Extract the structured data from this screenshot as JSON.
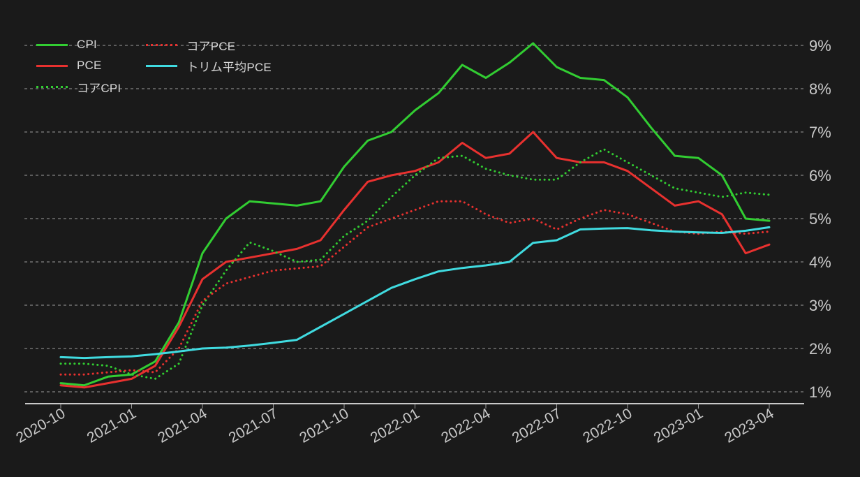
{
  "chart_data": {
    "type": "line",
    "title": "",
    "xlabel": "",
    "ylabel": "",
    "x_labels": [
      "2020-10",
      "2020-11",
      "2020-12",
      "2021-01",
      "2021-02",
      "2021-03",
      "2021-04",
      "2021-05",
      "2021-06",
      "2021-07",
      "2021-08",
      "2021-09",
      "2021-10",
      "2021-11",
      "2021-12",
      "2022-01",
      "2022-02",
      "2022-03",
      "2022-04",
      "2022-05",
      "2022-06",
      "2022-07",
      "2022-08",
      "2022-09",
      "2022-10",
      "2022-11",
      "2022-12",
      "2023-01",
      "2023-02",
      "2023-03",
      "2023-04"
    ],
    "x_tick_labels": [
      "2020-10",
      "2021-01",
      "2021-04",
      "2021-07",
      "2021-10",
      "2022-01",
      "2022-04",
      "2022-07",
      "2022-10",
      "2023-01",
      "2023-04"
    ],
    "y_tick_labels": [
      "1%",
      "2%",
      "3%",
      "4%",
      "5%",
      "6%",
      "7%",
      "8%",
      "9%"
    ],
    "y_tick_values": [
      1,
      2,
      3,
      4,
      5,
      6,
      7,
      8,
      9
    ],
    "ylim": [
      0.55,
      9.35
    ],
    "grid": "horizontal-dashed",
    "legend_position": "top-left",
    "series": [
      {
        "id": "cpi",
        "name": "CPI",
        "color": "#32cd32",
        "style": "solid",
        "values": [
          1.2,
          1.15,
          1.35,
          1.4,
          1.7,
          2.6,
          4.2,
          5.0,
          5.4,
          5.35,
          5.3,
          5.4,
          6.2,
          6.8,
          7.0,
          7.5,
          7.9,
          8.55,
          8.25,
          8.6,
          9.05,
          8.5,
          8.25,
          8.2,
          7.8,
          7.1,
          6.45,
          6.4,
          6.0,
          5.0,
          4.95
        ]
      },
      {
        "id": "pce",
        "name": "PCE",
        "color": "#e8312f",
        "style": "solid",
        "values": [
          1.15,
          1.1,
          1.2,
          1.3,
          1.6,
          2.5,
          3.6,
          4.0,
          4.1,
          4.2,
          4.3,
          4.5,
          5.2,
          5.85,
          6.0,
          6.1,
          6.3,
          6.75,
          6.4,
          6.5,
          7.0,
          6.4,
          6.3,
          6.3,
          6.1,
          5.7,
          5.3,
          5.4,
          5.1,
          4.2,
          4.4
        ]
      },
      {
        "id": "core-cpi",
        "name": "コアCPI",
        "color": "#32cd32",
        "style": "dotted",
        "values": [
          1.65,
          1.65,
          1.6,
          1.4,
          1.3,
          1.65,
          3.0,
          3.8,
          4.45,
          4.25,
          4.0,
          4.05,
          4.6,
          4.95,
          5.5,
          6.0,
          6.4,
          6.45,
          6.15,
          6.0,
          5.9,
          5.9,
          6.3,
          6.6,
          6.3,
          6.0,
          5.7,
          5.6,
          5.5,
          5.6,
          5.55
        ]
      },
      {
        "id": "core-pce",
        "name": "コアPCE",
        "color": "#e8312f",
        "style": "dotted",
        "values": [
          1.4,
          1.4,
          1.45,
          1.5,
          1.45,
          2.0,
          3.1,
          3.5,
          3.65,
          3.8,
          3.85,
          3.9,
          4.35,
          4.8,
          5.0,
          5.2,
          5.4,
          5.4,
          5.1,
          4.9,
          5.0,
          4.75,
          5.0,
          5.2,
          5.1,
          4.9,
          4.7,
          4.65,
          4.7,
          4.65,
          4.7
        ]
      },
      {
        "id": "trimmed-mean-pce",
        "name": "トリム平均PCE",
        "color": "#40dbe0",
        "style": "solid",
        "values": [
          1.8,
          1.78,
          1.8,
          1.82,
          1.87,
          1.93,
          2.0,
          2.02,
          2.07,
          2.13,
          2.2,
          2.5,
          2.8,
          3.1,
          3.4,
          3.6,
          3.78,
          3.86,
          3.92,
          4.0,
          4.44,
          4.5,
          4.75,
          4.77,
          4.78,
          4.73,
          4.7,
          4.68,
          4.67,
          4.72,
          4.8
        ]
      }
    ],
    "colors": {
      "background": "#1a1a1a",
      "gridline": "#c9c9c9",
      "axis_line": "#c9c9c9",
      "tick_label": "#c9c9c9",
      "legend_text": "#d8d8d8"
    }
  },
  "legend": {
    "columns": [
      {
        "items": [
          {
            "series": 0,
            "label": "CPI"
          },
          {
            "series": 1,
            "label": "PCE"
          },
          {
            "series": 2,
            "label": "コアCPI"
          }
        ]
      },
      {
        "items": [
          {
            "series": 3,
            "label": "コアPCE"
          },
          {
            "series": 4,
            "label": "トリム平均PCE"
          }
        ]
      }
    ]
  }
}
